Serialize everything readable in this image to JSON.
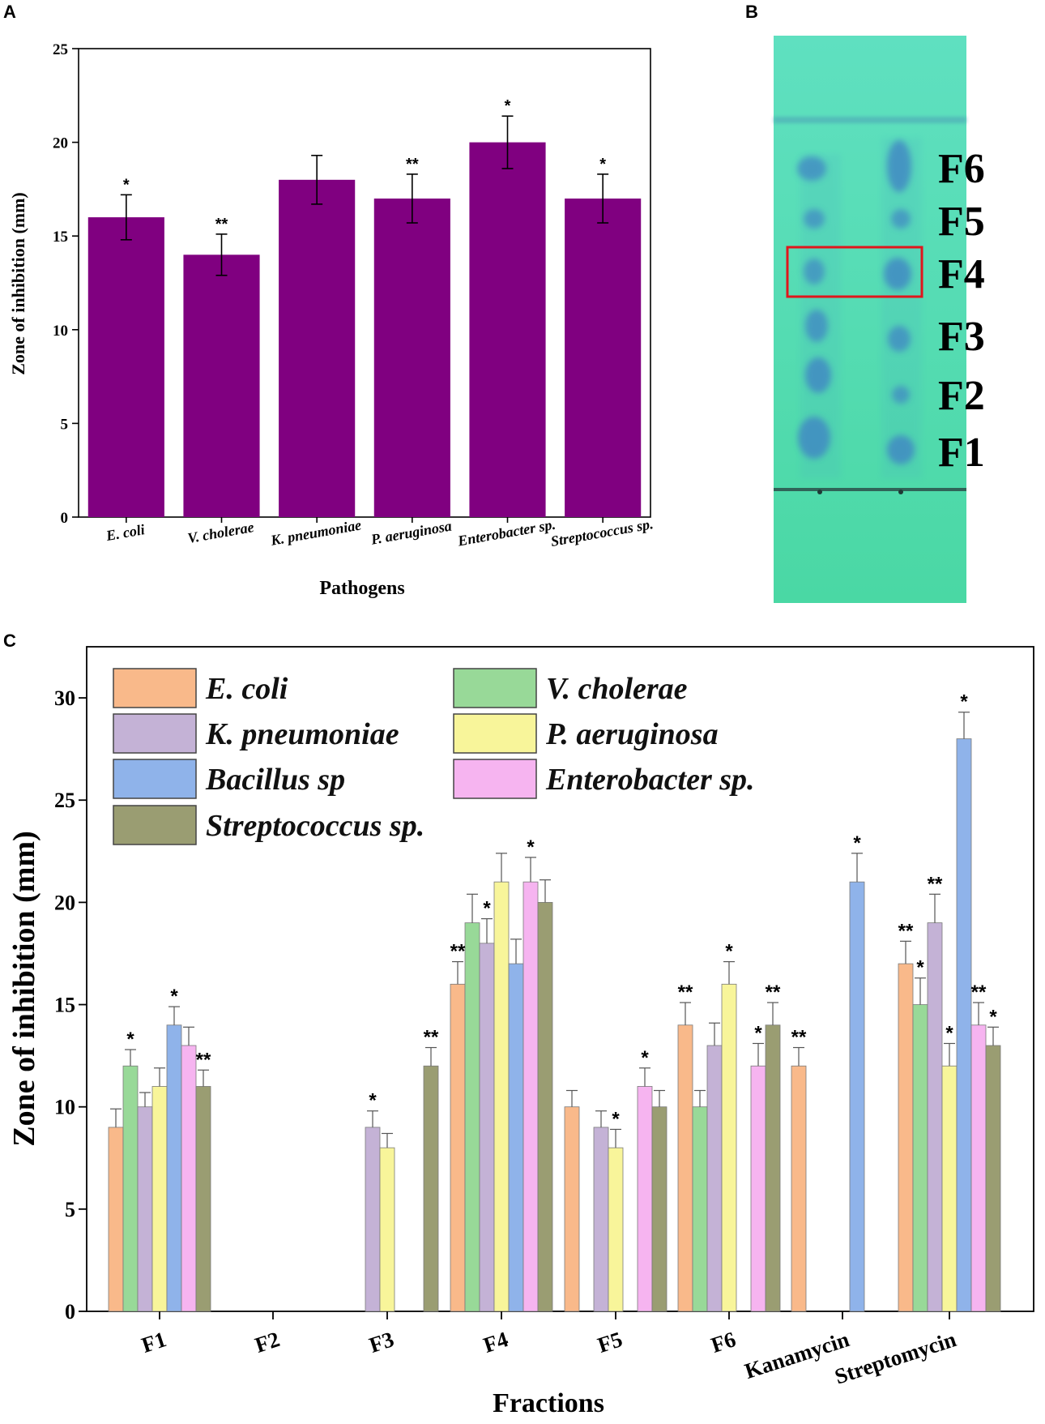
{
  "panels": {
    "a": {
      "letter": "A"
    },
    "b": {
      "letter": "B"
    },
    "c": {
      "letter": "C"
    }
  },
  "tlc": {
    "plate_color": "#4fd8a8",
    "spot_color": "#3f86c4",
    "highlight_color": "#e0161c",
    "highlighted_fraction": "F4",
    "fractions": [
      "F6",
      "F5",
      "F4",
      "F3",
      "F2",
      "F1"
    ]
  },
  "chart_data": [
    {
      "id": "chart-a",
      "type": "bar",
      "title": "",
      "xlabel": "Pathogens",
      "ylabel": "Zone of inhibition (mm)",
      "ylim": [
        0,
        25
      ],
      "yticks": [
        0,
        5,
        10,
        15,
        20,
        25
      ],
      "bar_color": "#800080",
      "categories": [
        "E. coli",
        "V. cholerae",
        "K. pneumoniae",
        "P. aeruginosa",
        "Enterobacter sp.",
        "Streptococcus sp."
      ],
      "values": [
        16,
        14,
        18,
        17,
        20,
        17
      ],
      "errors": [
        1.2,
        1.1,
        1.3,
        1.3,
        1.4,
        1.3
      ],
      "significance": [
        "*",
        "**",
        "",
        "**",
        "*",
        "*"
      ]
    },
    {
      "id": "chart-c",
      "type": "bar",
      "title": "",
      "xlabel": "Fractions",
      "ylabel": "Zone of inhibition (mm)",
      "ylim": [
        0,
        32.5
      ],
      "yticks": [
        0,
        5,
        10,
        15,
        20,
        25,
        30
      ],
      "legend_position": "top-left",
      "categories": [
        "F1",
        "F2",
        "F3",
        "F4",
        "F5",
        "F6",
        "Kanamycin",
        "Streptomycin"
      ],
      "series": [
        {
          "name": "E. coli",
          "color": "#f9b98a",
          "values": [
            9,
            null,
            null,
            16,
            10,
            14,
            12,
            17
          ],
          "errors": [
            0.9,
            null,
            null,
            1.1,
            0.8,
            1.1,
            0.9,
            1.1
          ],
          "significance": [
            "",
            "",
            "",
            "**",
            "",
            "**",
            "**",
            "**"
          ]
        },
        {
          "name": "V. cholerae",
          "color": "#98d998",
          "values": [
            12,
            null,
            null,
            19,
            null,
            10,
            null,
            15
          ],
          "errors": [
            0.8,
            null,
            null,
            1.4,
            null,
            0.8,
            null,
            1.3
          ],
          "significance": [
            "*",
            "",
            "",
            "",
            "",
            "",
            "",
            "*"
          ]
        },
        {
          "name": "K. pneumoniae",
          "color": "#c4b2d6",
          "values": [
            10,
            null,
            9,
            18,
            9,
            13,
            null,
            19
          ],
          "errors": [
            0.7,
            null,
            0.8,
            1.2,
            0.8,
            1.1,
            null,
            1.4
          ],
          "significance": [
            "",
            "",
            "*",
            "*",
            "",
            "",
            "",
            "**"
          ]
        },
        {
          "name": "P. aeruginosa",
          "color": "#f8f59a",
          "values": [
            11,
            null,
            8,
            21,
            8,
            16,
            null,
            12
          ],
          "errors": [
            0.9,
            null,
            0.7,
            1.4,
            0.9,
            1.1,
            null,
            1.1
          ],
          "significance": [
            "",
            "",
            "",
            "",
            "*",
            "*",
            "",
            "*"
          ]
        },
        {
          "name": "Bacillus sp",
          "color": "#8fb3ea",
          "values": [
            14,
            null,
            null,
            17,
            null,
            null,
            21,
            28
          ],
          "errors": [
            0.9,
            null,
            null,
            1.2,
            null,
            null,
            1.4,
            1.3
          ],
          "significance": [
            "*",
            "",
            "",
            "",
            "",
            "",
            "*",
            "*"
          ]
        },
        {
          "name": "Enterobacter sp.",
          "color": "#f6b4f0",
          "values": [
            13,
            null,
            null,
            21,
            11,
            12,
            null,
            14
          ],
          "errors": [
            0.9,
            null,
            null,
            1.2,
            0.9,
            1.1,
            null,
            1.1
          ],
          "significance": [
            "",
            "",
            "",
            "*",
            "*",
            "*",
            "",
            "**"
          ]
        },
        {
          "name": "Streptococcus sp.",
          "color": "#9a9d72",
          "values": [
            11,
            null,
            12,
            20,
            10,
            14,
            null,
            13
          ],
          "errors": [
            0.8,
            null,
            0.9,
            1.1,
            0.8,
            1.1,
            null,
            0.9
          ],
          "significance": [
            "**",
            "",
            "**",
            "",
            "",
            "**",
            "",
            "*"
          ]
        }
      ]
    }
  ]
}
